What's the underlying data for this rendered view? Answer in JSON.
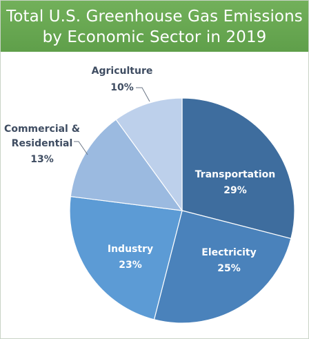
{
  "header": {
    "title_line1": "Total U.S. Greenhouse Gas Emissions",
    "title_line2": "by Economic Sector in 2019"
  },
  "chart_data": {
    "type": "pie",
    "title": "Total U.S. Greenhouse Gas Emissions by Economic Sector in 2019",
    "unit": "%",
    "slices": [
      {
        "label": "Transportation",
        "value": 29,
        "display": "29%",
        "color": "#3e6d9e"
      },
      {
        "label": "Electricity",
        "value": 25,
        "display": "25%",
        "color": "#4a82bb"
      },
      {
        "label": "Industry",
        "value": 23,
        "display": "23%",
        "color": "#5c9bd5"
      },
      {
        "label": "Commercial & Residential",
        "label_lines": [
          "Commercial &",
          "Residential"
        ],
        "value": 13,
        "display": "13%",
        "color": "#9bbae0"
      },
      {
        "label": "Agriculture",
        "value": 10,
        "display": "10%",
        "color": "#bdd0eb"
      }
    ]
  }
}
